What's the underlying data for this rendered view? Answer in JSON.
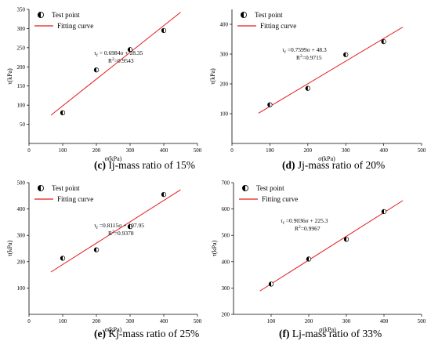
{
  "legend": {
    "point_label": "Test point",
    "curve_label": "Fitting curve"
  },
  "colors": {
    "fit_line": "#e31a1c",
    "axis": "#000000",
    "point_fill": "#000000"
  },
  "chart_data": [
    {
      "type": "scatter",
      "id": "c",
      "caption_letter": "(c)",
      "caption_text": " Ij-mass ratio of 15%",
      "xlabel": "σ(kPa)",
      "ylabel": "τ(kPa)",
      "xlim": [
        0,
        500
      ],
      "ylim": [
        0,
        350
      ],
      "xticks": [
        0,
        100,
        200,
        300,
        400,
        500
      ],
      "yticks": [
        50,
        100,
        150,
        200,
        250,
        300,
        350
      ],
      "points": {
        "x": [
          100,
          200,
          300,
          400
        ],
        "y": [
          80,
          192,
          245,
          295
        ]
      },
      "fit": {
        "slope": 0.6984,
        "intercept": 28.35,
        "x_range": [
          65,
          450
        ]
      },
      "equation": "τf = 0.6984σ + 28.35",
      "r2": "R2=0.9543",
      "legend_position": "top-left"
    },
    {
      "type": "scatter",
      "id": "d",
      "caption_letter": "(d)",
      "caption_text": " Jj-mass ratio of 20%",
      "xlabel": "σ(kPa)",
      "ylabel": "τ(kPa)",
      "xlim": [
        0,
        500
      ],
      "ylim": [
        0,
        450
      ],
      "xticks": [
        0,
        100,
        200,
        300,
        400,
        500
      ],
      "yticks": [
        100,
        200,
        300,
        400
      ],
      "points": {
        "x": [
          100,
          200,
          300,
          400
        ],
        "y": [
          130,
          185,
          298,
          342
        ]
      },
      "fit": {
        "slope": 0.7599,
        "intercept": 48.3,
        "x_range": [
          70,
          450
        ]
      },
      "equation": "τf =0.7599σ + 48.3",
      "r2": "R2=0.9715",
      "legend_position": "top-left"
    },
    {
      "type": "scatter",
      "id": "e",
      "caption_letter": "(e)",
      "caption_text": " Kj-mass ratio of 25%",
      "xlabel": "σ(kPa)",
      "ylabel": "τ(kPa)",
      "xlim": [
        0,
        500
      ],
      "ylim": [
        0,
        500
      ],
      "xticks": [
        0,
        100,
        200,
        300,
        400,
        500
      ],
      "yticks": [
        100,
        200,
        300,
        400,
        500
      ],
      "points": {
        "x": [
          100,
          200,
          300,
          400
        ],
        "y": [
          213,
          245,
          333,
          455
        ]
      },
      "fit": {
        "slope": 0.8115,
        "intercept": 107.95,
        "x_range": [
          65,
          450
        ]
      },
      "equation": "τf =0.8115σ + 107.95",
      "r2": "R2=0.9378",
      "legend_position": "top-left"
    },
    {
      "type": "scatter",
      "id": "f",
      "caption_letter": "(f)",
      "caption_text": " Lj-mass ratio of 33%",
      "xlabel": "σ(kPa)",
      "ylabel": "τ(kPa)",
      "xlim": [
        0,
        500
      ],
      "ylim": [
        200,
        700
      ],
      "xticks": [
        100,
        200,
        300,
        400,
        500
      ],
      "yticks": [
        200,
        300,
        400,
        500,
        600,
        700
      ],
      "points": {
        "x": [
          100,
          200,
          300,
          400
        ],
        "y": [
          315,
          410,
          485,
          590
        ]
      },
      "fit": {
        "slope": 0.9036,
        "intercept": 225.3,
        "x_range": [
          70,
          450
        ]
      },
      "equation": "τf =0.9036σ + 225.3",
      "r2": "R2=0.9967",
      "legend_position": "top-left"
    }
  ]
}
